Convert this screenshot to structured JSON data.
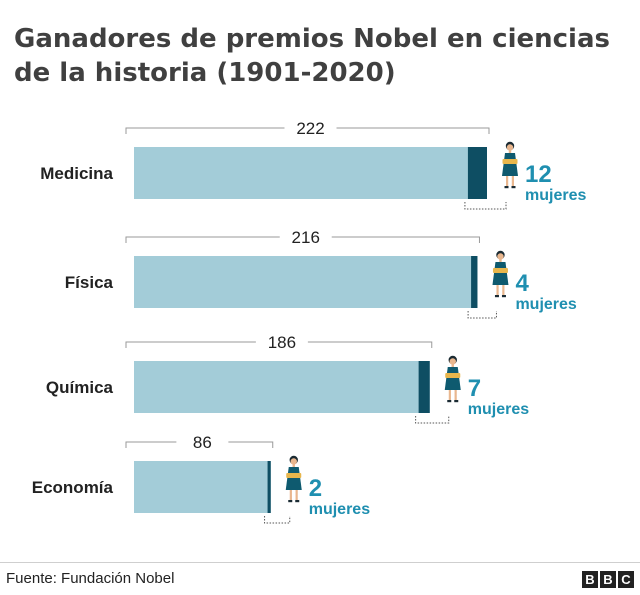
{
  "title": "Ganadores de premios Nobel en ciencias de la historia (1901-2020)",
  "source": "Fuente: Fundación Nobel",
  "logo": [
    "B",
    "B",
    "C"
  ],
  "colors": {
    "total_bar": "#a3ccd8",
    "women_bar": "#0e4e63",
    "women_text": "#1f8fb0",
    "bracket": "#9a9a9a"
  },
  "chart_data": {
    "type": "bar",
    "orientation": "horizontal",
    "categories": [
      "Medicina",
      "Física",
      "Química",
      "Economía"
    ],
    "series": [
      {
        "values": [
          222,
          216,
          186,
          86
        ]
      },
      {
        "values": [
          12,
          4,
          7,
          2
        ]
      }
    ],
    "women_labels": [
      "12",
      "4",
      "7",
      "2"
    ],
    "women_unit": "mujeres",
    "icon": "woman-icon",
    "grid": false
  }
}
